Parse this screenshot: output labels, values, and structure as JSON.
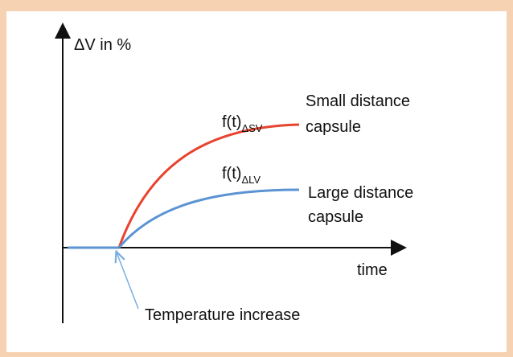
{
  "diagram": {
    "y_axis_label": "ΔV in %",
    "x_axis_label": "time",
    "curves": [
      {
        "function": "f(t)",
        "subscript": "ΔSV",
        "name_lines": [
          "Small distance",
          "capsule"
        ],
        "color": "#e8432e"
      },
      {
        "function": "f(t)",
        "subscript": "ΔLV",
        "name_lines": [
          "Large distance",
          "capsule"
        ],
        "color": "#5b93d3"
      }
    ],
    "annotation": "Temperature increase"
  }
}
